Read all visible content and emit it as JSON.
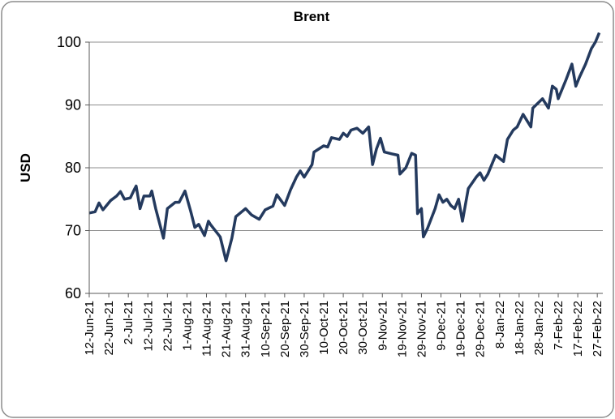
{
  "chart_data": {
    "type": "line",
    "title": "Brent",
    "y_label": "USD",
    "x": [
      "2021-06-12",
      "2021-06-15",
      "2021-06-17",
      "2021-06-19",
      "2021-06-23",
      "2021-06-26",
      "2021-06-28",
      "2021-06-30",
      "2021-07-03",
      "2021-07-05",
      "2021-07-06",
      "2021-07-08",
      "2021-07-10",
      "2021-07-13",
      "2021-07-14",
      "2021-07-16",
      "2021-07-20",
      "2021-07-22",
      "2021-07-26",
      "2021-07-28",
      "2021-07-31",
      "2021-08-03",
      "2021-08-05",
      "2021-08-07",
      "2021-08-10",
      "2021-08-12",
      "2021-08-13",
      "2021-08-18",
      "2021-08-21",
      "2021-08-24",
      "2021-08-26",
      "2021-08-29",
      "2021-08-31",
      "2021-09-03",
      "2021-09-07",
      "2021-09-10",
      "2021-09-14",
      "2021-09-16",
      "2021-09-20",
      "2021-09-23",
      "2021-09-26",
      "2021-09-28",
      "2021-09-30",
      "2021-10-04",
      "2021-10-05",
      "2021-10-10",
      "2021-10-12",
      "2021-10-14",
      "2021-10-18",
      "2021-10-20",
      "2021-10-22",
      "2021-10-24",
      "2021-10-27",
      "2021-10-30",
      "2021-11-02",
      "2021-11-04",
      "2021-11-06",
      "2021-11-08",
      "2021-11-10",
      "2021-11-14",
      "2021-11-17",
      "2021-11-18",
      "2021-11-21",
      "2021-11-24",
      "2021-11-26",
      "2021-11-27",
      "2021-11-29",
      "2021-11-30",
      "2021-12-02",
      "2021-12-06",
      "2021-12-08",
      "2021-12-10",
      "2021-12-12",
      "2021-12-14",
      "2021-12-16",
      "2021-12-18",
      "2021-12-20",
      "2021-12-23",
      "2021-12-27",
      "2021-12-29",
      "2021-12-31",
      "2022-01-02",
      "2022-01-04",
      "2022-01-06",
      "2022-01-10",
      "2022-01-12",
      "2022-01-15",
      "2022-01-17",
      "2022-01-20",
      "2022-01-24",
      "2022-01-25",
      "2022-01-30",
      "2022-02-02",
      "2022-02-04",
      "2022-02-06",
      "2022-02-07",
      "2022-02-11",
      "2022-02-14",
      "2022-02-16",
      "2022-02-18",
      "2022-02-21",
      "2022-02-24",
      "2022-02-26",
      "2022-02-28"
    ],
    "values": [
      72.8,
      73.0,
      74.4,
      73.3,
      74.8,
      75.5,
      76.2,
      75.0,
      75.2,
      76.5,
      77.1,
      73.5,
      75.5,
      75.5,
      76.3,
      73.5,
      68.8,
      73.5,
      74.5,
      74.5,
      76.3,
      73.0,
      70.5,
      71.0,
      69.2,
      71.5,
      71.0,
      69.0,
      65.2,
      68.8,
      72.2,
      73.0,
      73.5,
      72.5,
      71.8,
      73.3,
      73.9,
      75.7,
      74.0,
      76.5,
      78.5,
      79.5,
      78.5,
      80.5,
      82.5,
      83.5,
      83.3,
      84.8,
      84.5,
      85.5,
      85.0,
      86.0,
      86.3,
      85.5,
      86.5,
      80.5,
      83.0,
      84.7,
      82.5,
      82.2,
      82.0,
      79.0,
      80.0,
      82.3,
      82.0,
      72.7,
      73.5,
      69.0,
      70.3,
      73.5,
      75.7,
      74.5,
      75.0,
      74.0,
      73.5,
      75.0,
      71.5,
      76.7,
      78.5,
      79.2,
      78.0,
      79.0,
      80.5,
      82.0,
      81.0,
      84.5,
      86.0,
      86.5,
      88.5,
      86.5,
      89.5,
      91.0,
      89.5,
      93.0,
      92.5,
      91.0,
      94.0,
      96.5,
      93.0,
      94.5,
      96.5,
      99.0,
      100.0,
      101.5
    ],
    "color": "#243a5e",
    "xlim": [
      "2021-06-12",
      "2022-03-01"
    ],
    "xticks": [
      {
        "value": "2021-06-12",
        "label": "12-Jun-21"
      },
      {
        "value": "2021-06-22",
        "label": "22-Jun-21"
      },
      {
        "value": "2021-07-02",
        "label": "2-Jul-21"
      },
      {
        "value": "2021-07-12",
        "label": "12-Jul-21"
      },
      {
        "value": "2021-07-22",
        "label": "22-Jul-21"
      },
      {
        "value": "2021-08-01",
        "label": "1-Aug-21"
      },
      {
        "value": "2021-08-11",
        "label": "11-Aug-21"
      },
      {
        "value": "2021-08-21",
        "label": "21-Aug-21"
      },
      {
        "value": "2021-08-31",
        "label": "31-Aug-21"
      },
      {
        "value": "2021-09-10",
        "label": "10-Sep-21"
      },
      {
        "value": "2021-09-20",
        "label": "20-Sep-21"
      },
      {
        "value": "2021-09-30",
        "label": "30-Sep-21"
      },
      {
        "value": "2021-10-10",
        "label": "10-Oct-21"
      },
      {
        "value": "2021-10-20",
        "label": "20-Oct-21"
      },
      {
        "value": "2021-10-30",
        "label": "30-Oct-21"
      },
      {
        "value": "2021-11-09",
        "label": "9-Nov-21"
      },
      {
        "value": "2021-11-19",
        "label": "19-Nov-21"
      },
      {
        "value": "2021-11-29",
        "label": "29-Nov-21"
      },
      {
        "value": "2021-12-09",
        "label": "9-Dec-21"
      },
      {
        "value": "2021-12-19",
        "label": "19-Dec-21"
      },
      {
        "value": "2021-12-29",
        "label": "29-Dec-21"
      },
      {
        "value": "2022-01-08",
        "label": "8-Jan-22"
      },
      {
        "value": "2022-01-18",
        "label": "18-Jan-22"
      },
      {
        "value": "2022-01-28",
        "label": "28-Jan-22"
      },
      {
        "value": "2022-02-07",
        "label": "7-Feb-22"
      },
      {
        "value": "2022-02-17",
        "label": "17-Feb-22"
      },
      {
        "value": "2022-02-27",
        "label": "27-Feb-22"
      }
    ],
    "ylim": [
      60,
      100
    ],
    "yticks": [
      60,
      70,
      80,
      90,
      100
    ],
    "grid": true
  }
}
